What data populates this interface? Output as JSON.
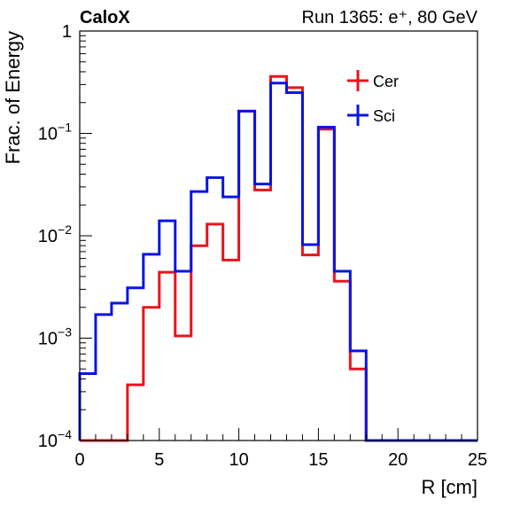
{
  "header": {
    "experiment": "CaloX",
    "run_info": "Run 1365: e⁺, 80 GeV"
  },
  "chart_data": {
    "type": "step-histogram",
    "title": "",
    "xlabel": "R [cm]",
    "ylabel": "Frac. of Energy",
    "xlim": [
      0,
      25
    ],
    "ylim": [
      0.0001,
      1
    ],
    "yscale": "log",
    "grid": false,
    "legend_position": "top-right",
    "x_ticks": [
      {
        "value": 0,
        "label": "0"
      },
      {
        "value": 5,
        "label": "5"
      },
      {
        "value": 10,
        "label": "10"
      },
      {
        "value": 15,
        "label": "15"
      },
      {
        "value": 20,
        "label": "20"
      },
      {
        "value": 25,
        "label": "25"
      }
    ],
    "y_ticks": [
      {
        "value": 1,
        "label": "1"
      },
      {
        "value": 0.1,
        "base": "10",
        "exp": "−1"
      },
      {
        "value": 0.01,
        "base": "10",
        "exp": "−2"
      },
      {
        "value": 0.001,
        "base": "10",
        "exp": "−3"
      },
      {
        "value": 0.0001,
        "base": "10",
        "exp": "−4"
      }
    ],
    "bin_edges": [
      0,
      1,
      2,
      3,
      4,
      5,
      6,
      7,
      8,
      9,
      10,
      11,
      12,
      13,
      14,
      15,
      16,
      17,
      18,
      19,
      20,
      21,
      22,
      23,
      24,
      25
    ],
    "series": [
      {
        "name": "Cer",
        "color": "#e8141c",
        "values": [
          0,
          0,
          0,
          0.00035,
          0.002,
          0.0044,
          0.00105,
          0.008,
          0.013,
          0.0058,
          0.165,
          0.028,
          0.36,
          0.28,
          0.0065,
          0.11,
          0.0036,
          0.0005,
          0,
          0,
          0,
          0,
          0,
          0,
          0
        ]
      },
      {
        "name": "Sci",
        "color": "#0a14e0",
        "values": [
          0.00045,
          0.0017,
          0.0022,
          0.0031,
          0.0066,
          0.014,
          0.0045,
          0.027,
          0.037,
          0.024,
          0.165,
          0.032,
          0.31,
          0.25,
          0.0082,
          0.115,
          0.0045,
          0.00075,
          0,
          0,
          0,
          0,
          0,
          0,
          0
        ]
      }
    ]
  }
}
